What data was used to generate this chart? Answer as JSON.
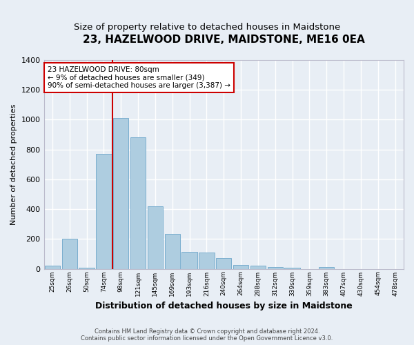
{
  "title": "23, HAZELWOOD DRIVE, MAIDSTONE, ME16 0EA",
  "subtitle": "Size of property relative to detached houses in Maidstone",
  "xlabel": "Distribution of detached houses by size in Maidstone",
  "ylabel": "Number of detached properties",
  "footer_line1": "Contains HM Land Registry data © Crown copyright and database right 2024.",
  "footer_line2": "Contains public sector information licensed under the Open Government Licence v3.0.",
  "categories": [
    "25sqm",
    "26sqm",
    "50sqm",
    "74sqm",
    "98sqm",
    "121sqm",
    "145sqm",
    "169sqm",
    "193sqm",
    "216sqm",
    "240sqm",
    "264sqm",
    "288sqm",
    "312sqm",
    "339sqm",
    "359sqm",
    "383sqm",
    "407sqm",
    "430sqm",
    "454sqm",
    "478sqm"
  ],
  "bar_values": [
    20,
    200,
    5,
    770,
    1010,
    880,
    420,
    235,
    115,
    110,
    70,
    25,
    22,
    12,
    5,
    0,
    12,
    0,
    0,
    0,
    0
  ],
  "bar_color": "#aecde0",
  "bar_edge_color": "#7aaecf",
  "vline_x": 3.5,
  "vline_color": "#cc0000",
  "annotation_title": "23 HAZELWOOD DRIVE: 80sqm",
  "annotation_line2": "← 9% of detached houses are smaller (349)",
  "annotation_line3": "90% of semi-detached houses are larger (3,387) →",
  "annotation_box_color": "#cc0000",
  "ylim": [
    0,
    1400
  ],
  "yticks": [
    0,
    200,
    400,
    600,
    800,
    1000,
    1200,
    1400
  ],
  "background_color": "#e8eef5",
  "grid_color": "#ffffff",
  "title_fontsize": 11,
  "subtitle_fontsize": 9.5
}
